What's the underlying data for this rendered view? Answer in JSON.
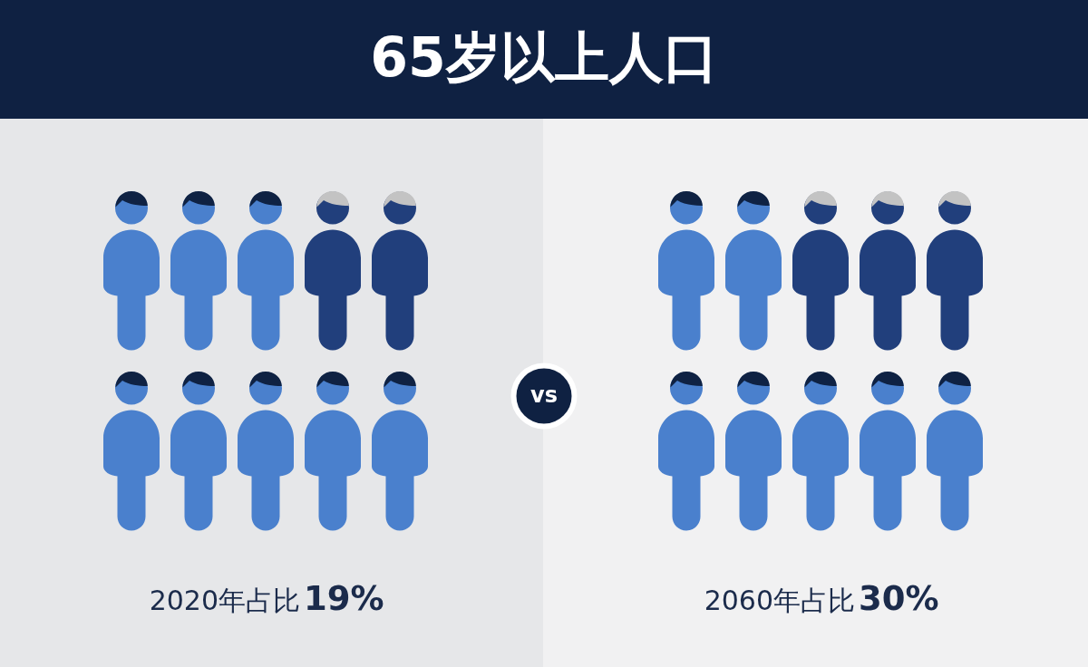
{
  "chart_data": {
    "type": "other",
    "title": "65岁以上人口",
    "categories": [
      "2020年占比",
      "2060年占比"
    ],
    "values": [
      19,
      30
    ],
    "value_labels": [
      "19%",
      "30%"
    ],
    "annotations": [
      "vs"
    ]
  }
}
